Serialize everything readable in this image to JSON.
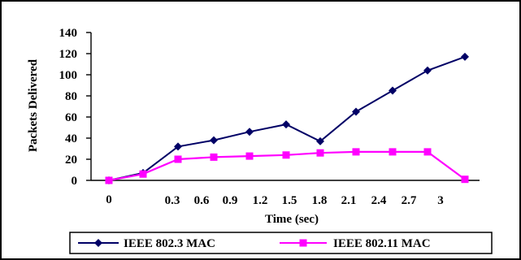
{
  "chart_data": {
    "type": "line",
    "title": "",
    "xlabel": "Time (sec)",
    "ylabel": "Packets Delivered",
    "x_tick_labels": [
      "0",
      "0.3",
      "0.6",
      "0.9",
      "1.2",
      "1.5",
      "1.8",
      "2.1",
      "2.4",
      "2.7",
      "3"
    ],
    "y_ticks": [
      "0",
      "20",
      "40",
      "60",
      "80",
      "100",
      "120",
      "140"
    ],
    "ylim": [
      0,
      140
    ],
    "grid": false,
    "legend_position": "bottom",
    "series": [
      {
        "name": "IEEE 802.3 MAC",
        "color": "#000066",
        "marker": "diamond",
        "values": [
          0,
          7,
          32,
          38,
          46,
          53,
          37,
          65,
          85,
          104,
          117
        ]
      },
      {
        "name": "IEEE 802.11 MAC",
        "color": "#ff00ff",
        "marker": "square",
        "values": [
          0,
          6,
          20,
          22,
          23,
          24,
          26,
          27,
          27,
          27,
          1
        ]
      }
    ]
  }
}
